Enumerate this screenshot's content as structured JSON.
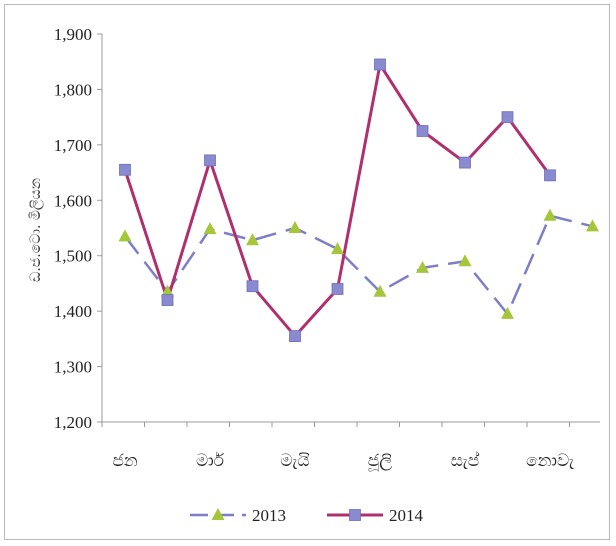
{
  "chart_data": {
    "type": "line",
    "ylabel": "ඩ.ජ.ටො. මිලියන",
    "ylim": [
      1200,
      1900
    ],
    "y_ticks": [
      "1,200",
      "1,300",
      "1,400",
      "1,500",
      "1,600",
      "1,700",
      "1,800",
      "1,900"
    ],
    "x_tick_labels": [
      "ජන",
      "මාර්",
      "මැයි",
      "ජූලි",
      "සැප්",
      "නොවැ"
    ],
    "x_tick_positions": [
      1,
      3,
      5,
      7,
      9,
      11
    ],
    "legend_position": "bottom",
    "grid": false,
    "series": [
      {
        "name": "2013",
        "color": "#a6c63a",
        "line_color": "#7e7ec8",
        "dashed": true,
        "marker": "triangle",
        "x": [
          1,
          2,
          3,
          4,
          5,
          6,
          7,
          8,
          9,
          10,
          11,
          12
        ],
        "values": [
          1535,
          1435,
          1548,
          1528,
          1550,
          1512,
          1435,
          1478,
          1490,
          1395,
          1572,
          1553
        ]
      },
      {
        "name": "2014",
        "color": "#8a8ad0",
        "line_color": "#b0306e",
        "dashed": false,
        "marker": "square",
        "x": [
          1,
          2,
          3,
          4,
          5,
          6,
          7,
          8,
          9,
          10,
          11
        ],
        "values": [
          1655,
          1420,
          1672,
          1445,
          1355,
          1440,
          1845,
          1725,
          1668,
          1750,
          1645
        ]
      }
    ]
  }
}
